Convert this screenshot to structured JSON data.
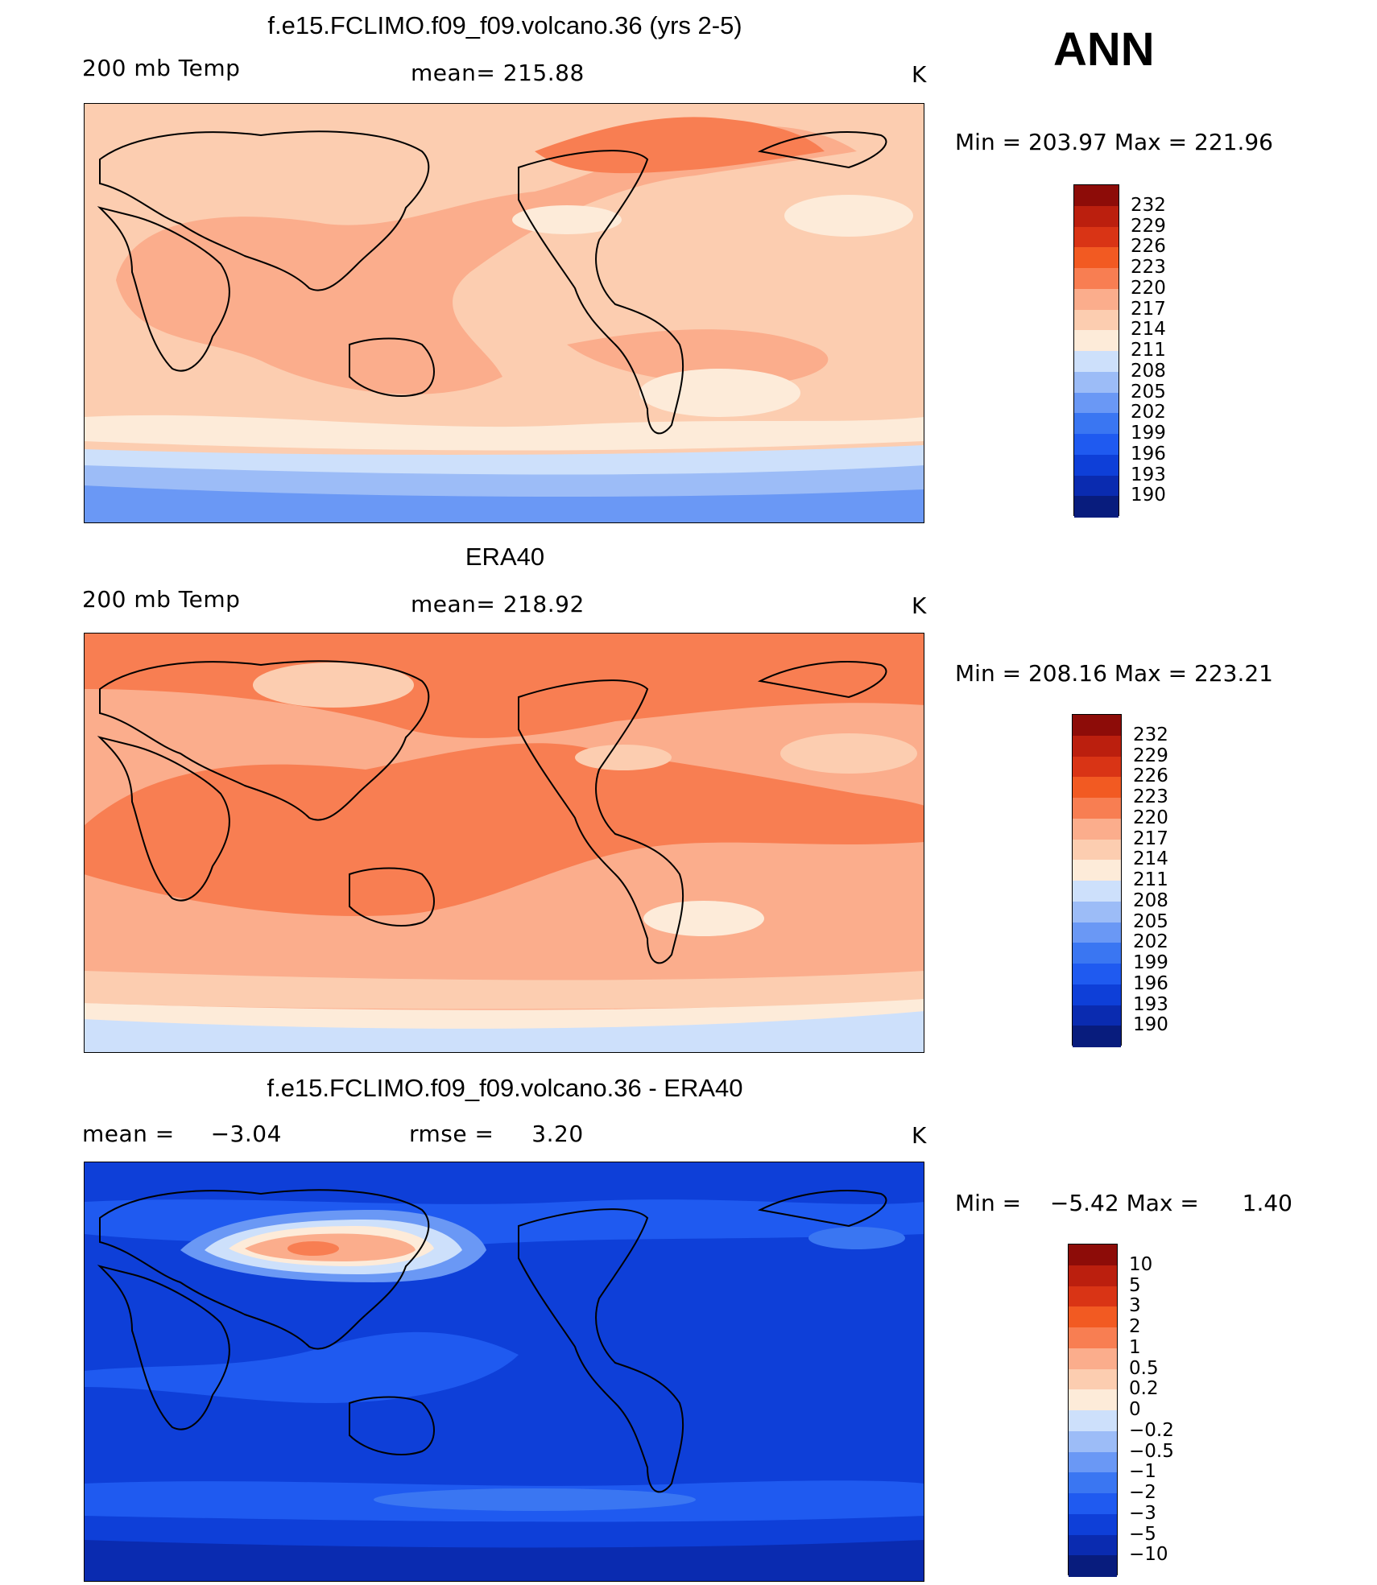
{
  "season": "ANN",
  "units": "K",
  "palette": {
    "temp": [
      "#081c7d",
      "#0a2bb0",
      "#0e3fd8",
      "#1f5af0",
      "#3a76f2",
      "#6a98f5",
      "#9cbcf7",
      "#cde0fb",
      "#fdebd9",
      "#fccdb0",
      "#fbad8c",
      "#f87e52",
      "#f25a22",
      "#d93415",
      "#bb1f0e",
      "#8d0c08"
    ],
    "diff": [
      "#081c7d",
      "#0a2bb0",
      "#0e3fd8",
      "#1f5af0",
      "#3a76f2",
      "#6a98f5",
      "#9cbcf7",
      "#cde0fb",
      "#fdebd9",
      "#fccdb0",
      "#fbad8c",
      "#f87e52",
      "#f25a22",
      "#d93415",
      "#bb1f0e",
      "#8d0c08"
    ]
  },
  "panels": [
    {
      "title": "f.e15.FCLIMO.f09_f09.volcano.36 (yrs 2-5)",
      "left_label": "200 mb Temp",
      "center_label": "mean=",
      "center_value": "215.88",
      "units": "K",
      "min_label": "Min =",
      "min_value": "203.97",
      "max_label": "Max =",
      "max_value": "221.96",
      "levels": [
        "232",
        "229",
        "226",
        "223",
        "220",
        "217",
        "214",
        "211",
        "208",
        "205",
        "202",
        "199",
        "196",
        "193",
        "190"
      ]
    },
    {
      "title": "ERA40",
      "left_label": "200 mb Temp",
      "center_label": "mean=",
      "center_value": "218.92",
      "units": "K",
      "min_label": "Min =",
      "min_value": "208.16",
      "max_label": "Max =",
      "max_value": "223.21",
      "levels": [
        "232",
        "229",
        "226",
        "223",
        "220",
        "217",
        "214",
        "211",
        "208",
        "205",
        "202",
        "199",
        "196",
        "193",
        "190"
      ]
    },
    {
      "title": "f.e15.FCLIMO.f09_f09.volcano.36 - ERA40",
      "left_label": "mean =",
      "left_value": "−3.04",
      "center_label": "rmse =",
      "center_value": "3.20",
      "units": "K",
      "min_label": "Min =",
      "min_value": "−5.42",
      "max_label": "Max =",
      "max_value": "1.40",
      "levels": [
        "10",
        "5",
        "3",
        "2",
        "1",
        "0.5",
        "0.2",
        "0",
        "−0.2",
        "−0.5",
        "−1",
        "−2",
        "−3",
        "−5",
        "−10"
      ]
    }
  ]
}
